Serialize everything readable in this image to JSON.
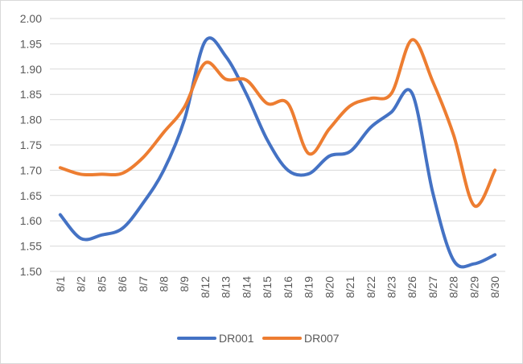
{
  "chart_data": {
    "type": "line",
    "title": "",
    "xlabel": "",
    "ylabel": "",
    "categories": [
      "8/1",
      "8/2",
      "8/5",
      "8/6",
      "8/7",
      "8/8",
      "8/9",
      "8/12",
      "8/13",
      "8/14",
      "8/15",
      "8/16",
      "8/19",
      "8/20",
      "8/21",
      "8/22",
      "8/23",
      "8/26",
      "8/27",
      "8/28",
      "8/29",
      "8/30"
    ],
    "ylim": [
      1.5,
      2.0
    ],
    "yticks": [
      "1.50",
      "1.55",
      "1.60",
      "1.65",
      "1.70",
      "1.75",
      "1.80",
      "1.85",
      "1.90",
      "1.95",
      "2.00"
    ],
    "grid": true,
    "legend": "bottom",
    "series": [
      {
        "name": "DR001",
        "color": "#4472C4",
        "values": [
          1.612,
          1.565,
          1.572,
          1.585,
          1.635,
          1.7,
          1.8,
          1.955,
          1.925,
          1.85,
          1.76,
          1.7,
          1.693,
          1.728,
          1.737,
          1.785,
          1.815,
          1.852,
          1.655,
          1.522,
          1.515,
          1.533
        ]
      },
      {
        "name": "DR007",
        "color": "#ED7D31",
        "values": [
          1.705,
          1.692,
          1.692,
          1.694,
          1.725,
          1.775,
          1.825,
          1.912,
          1.88,
          1.878,
          1.832,
          1.832,
          1.733,
          1.782,
          1.827,
          1.842,
          1.852,
          1.958,
          1.875,
          1.77,
          1.63,
          1.7
        ]
      }
    ]
  }
}
